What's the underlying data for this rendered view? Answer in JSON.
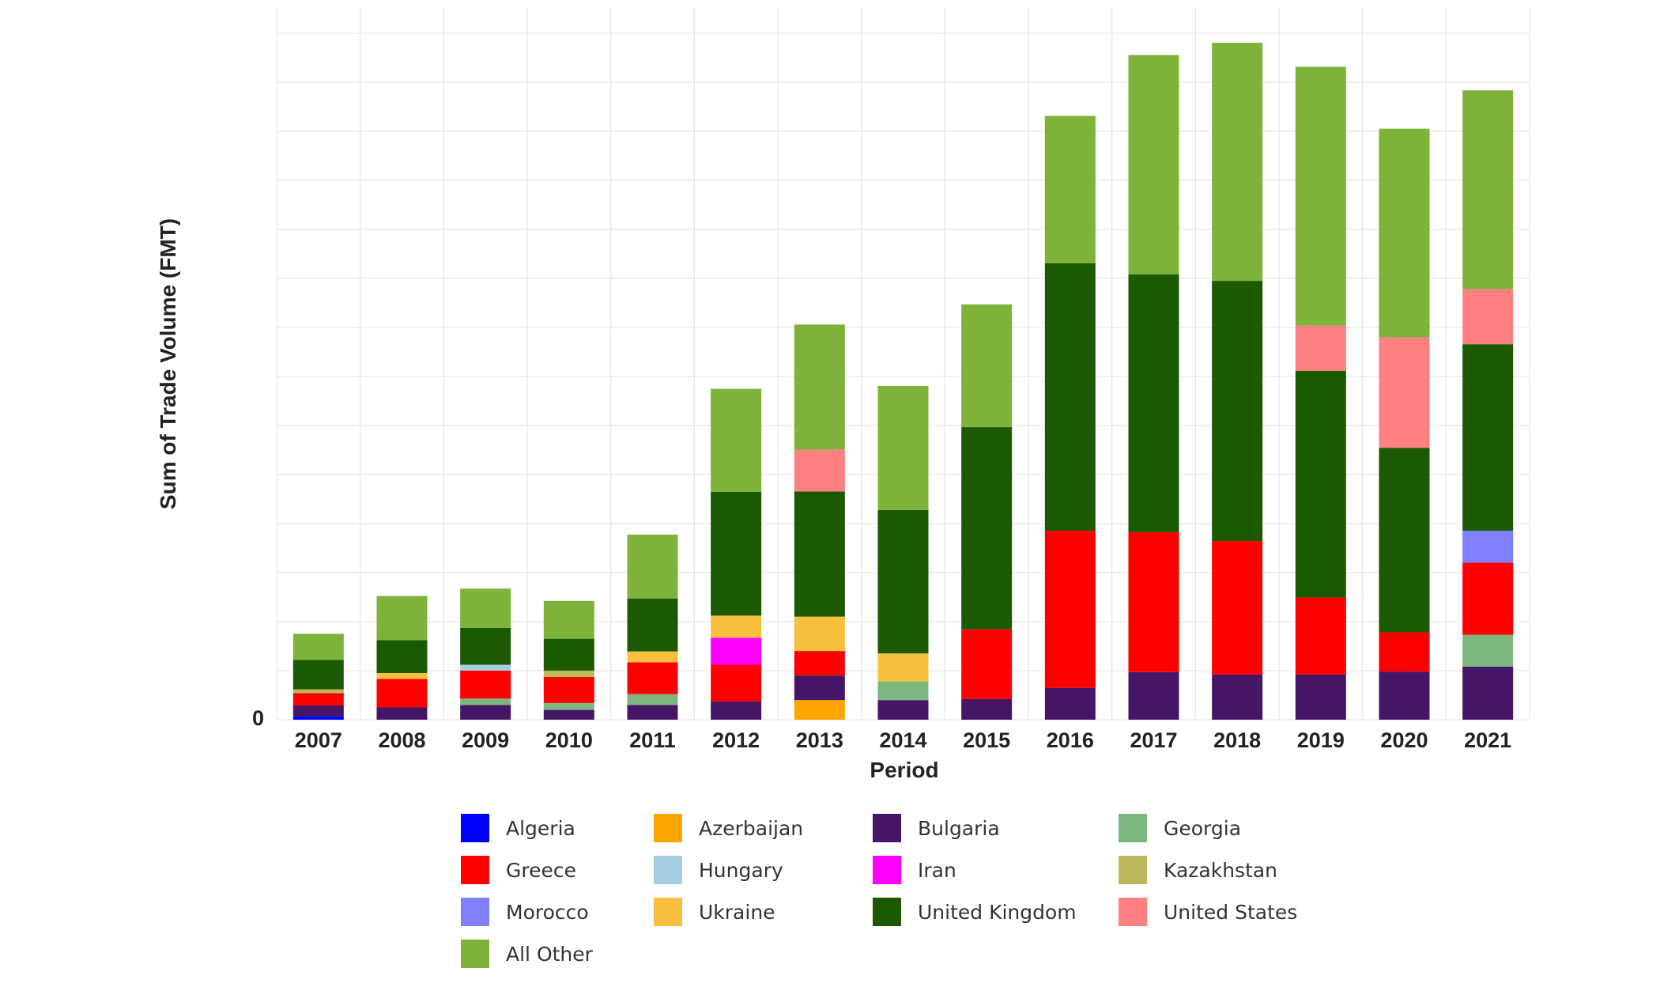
{
  "chart_data": {
    "type": "bar",
    "stacked": true,
    "title": "",
    "xlabel": "Period",
    "ylabel": "Sum of Trade Volume (FMT)",
    "y_tick_labels": [
      "0"
    ],
    "ylim": [
      0,
      1450
    ],
    "grid": true,
    "legend_position": "bottom",
    "categories": [
      "2007",
      "2008",
      "2009",
      "2010",
      "2011",
      "2012",
      "2013",
      "2014",
      "2015",
      "2016",
      "2017",
      "2018",
      "2019",
      "2020",
      "2021"
    ],
    "series": [
      {
        "name": "Algeria",
        "color": "#0000ff",
        "values": [
          7,
          0,
          0,
          0,
          0,
          0,
          0,
          0,
          0,
          0,
          0,
          0,
          0,
          0,
          0
        ]
      },
      {
        "name": "Azerbaijan",
        "color": "#ffa500",
        "values": [
          0,
          0,
          0,
          0,
          0,
          0,
          40,
          0,
          0,
          0,
          0,
          0,
          0,
          0,
          0
        ]
      },
      {
        "name": "Bulgaria",
        "color": "#461666",
        "values": [
          22,
          25,
          30,
          20,
          30,
          37,
          50,
          40,
          42,
          65,
          97,
          92,
          92,
          98,
          108
        ]
      },
      {
        "name": "Georgia",
        "color": "#7bb77f",
        "values": [
          0,
          0,
          13,
          14,
          22,
          0,
          0,
          38,
          0,
          0,
          0,
          0,
          0,
          0,
          65
        ]
      },
      {
        "name": "Greece",
        "color": "#ff0000",
        "values": [
          25,
          58,
          57,
          53,
          65,
          75,
          50,
          0,
          142,
          320,
          285,
          272,
          157,
          80,
          147
        ]
      },
      {
        "name": "Morocco",
        "color": "#8080ff",
        "values": [
          0,
          0,
          0,
          0,
          0,
          0,
          0,
          0,
          0,
          0,
          0,
          0,
          0,
          0,
          65
        ]
      },
      {
        "name": "Hungary",
        "color": "#a6cee3",
        "values": [
          0,
          0,
          12,
          0,
          0,
          0,
          0,
          0,
          0,
          0,
          0,
          0,
          0,
          0,
          0
        ]
      },
      {
        "name": "Iran",
        "color": "#ff00ff",
        "values": [
          0,
          0,
          0,
          0,
          0,
          55,
          0,
          0,
          0,
          0,
          0,
          0,
          0,
          0,
          0
        ]
      },
      {
        "name": "Kazakhstan",
        "color": "#bdb85c",
        "values": [
          8,
          0,
          0,
          13,
          0,
          0,
          0,
          0,
          0,
          0,
          0,
          0,
          0,
          0,
          0
        ]
      },
      {
        "name": "Ukraine",
        "color": "#f9c03e",
        "values": [
          0,
          12,
          0,
          0,
          22,
          45,
          70,
          57,
          0,
          0,
          0,
          0,
          0,
          0,
          0
        ]
      },
      {
        "name": "United Kingdom",
        "color": "#1b5a02",
        "values": [
          60,
          67,
          75,
          65,
          108,
          252,
          255,
          292,
          412,
          545,
          525,
          530,
          462,
          376,
          380
        ]
      },
      {
        "name": "United States",
        "color": "#ff8080",
        "values": [
          0,
          0,
          0,
          0,
          0,
          0,
          85,
          0,
          0,
          0,
          0,
          0,
          92,
          225,
          112
        ]
      },
      {
        "name": "All Other",
        "color": "#7fb23a",
        "values": [
          53,
          90,
          80,
          77,
          130,
          210,
          255,
          253,
          250,
          300,
          447,
          485,
          527,
          425,
          405
        ]
      }
    ],
    "legend_order": [
      "Algeria",
      "Greece",
      "Morocco",
      "All Other",
      "Azerbaijan",
      "Hungary",
      "Ukraine",
      "Bulgaria",
      "Iran",
      "United Kingdom",
      "Georgia",
      "Kazakhstan",
      "United States"
    ]
  }
}
